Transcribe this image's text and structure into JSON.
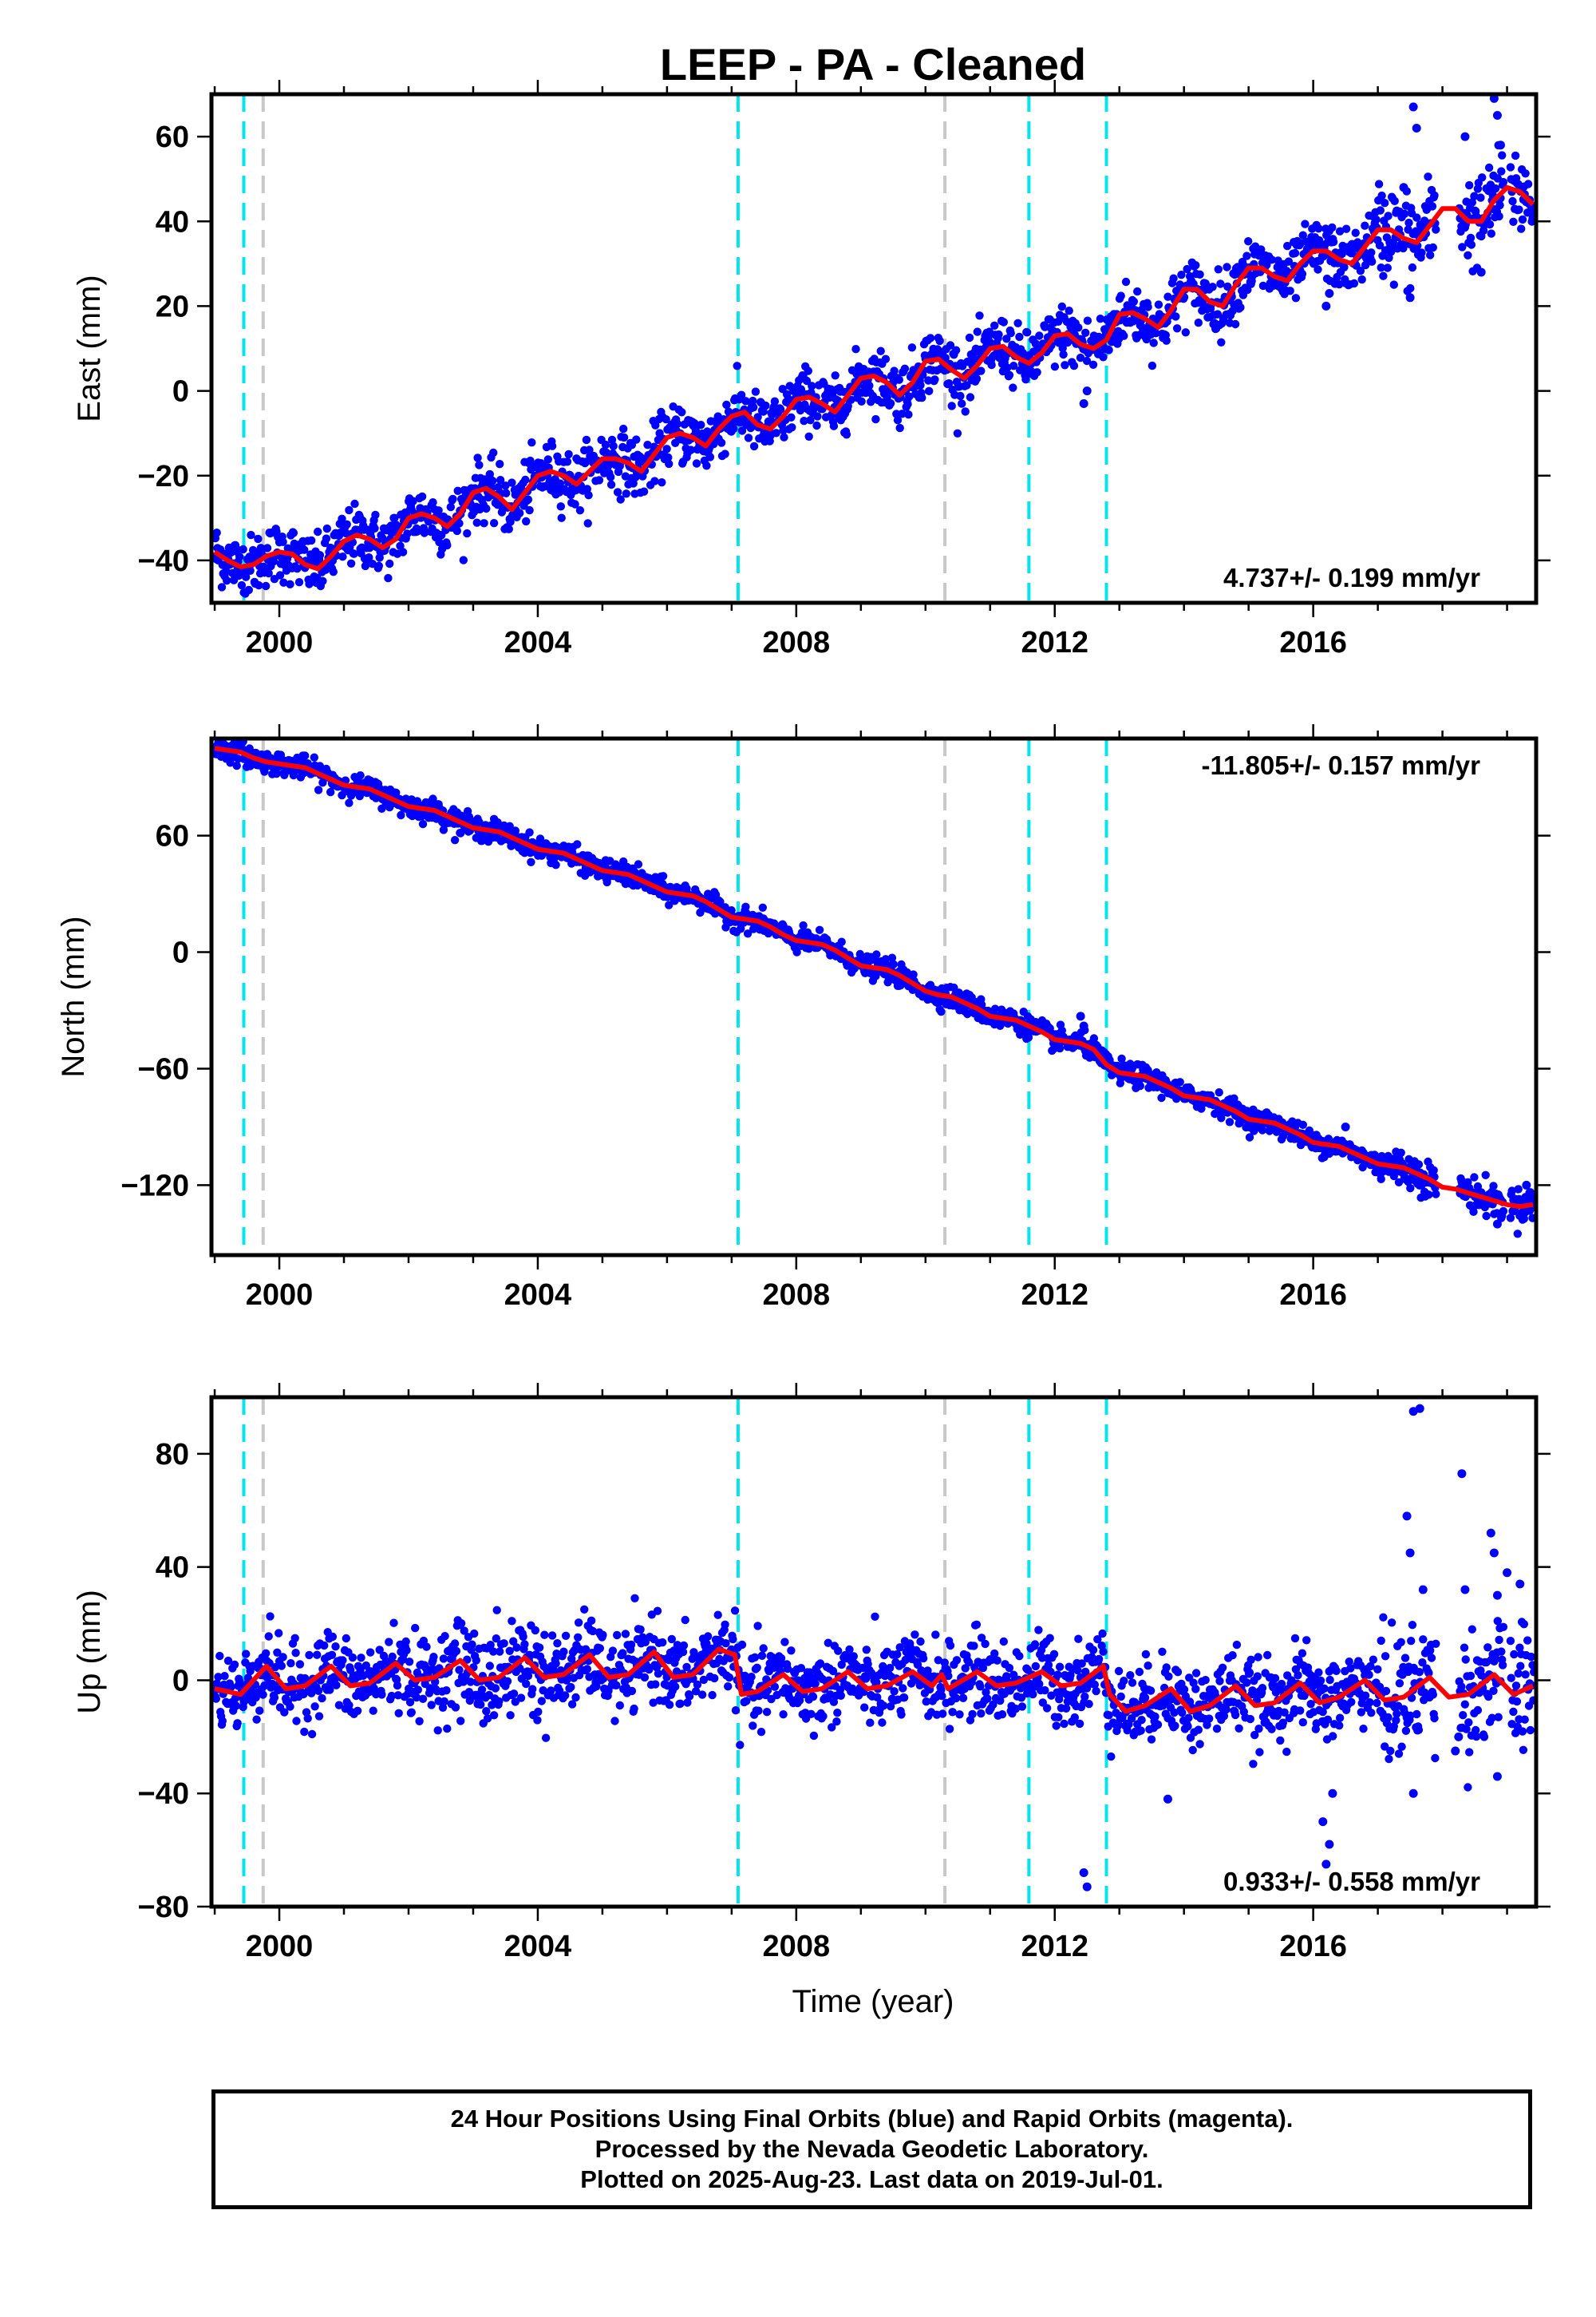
{
  "title": "LEEP  - PA - Cleaned",
  "xlabel": "Time (year)",
  "colors": {
    "final_orbits": "#0000ff",
    "model": "#ff0000",
    "equipment_change": "#00e5ee",
    "other_offset": "#c8c8c8",
    "frame": "#000000"
  },
  "footer": {
    "line1": "24 Hour Positions Using Final Orbits (blue) and Rapid Orbits (magenta).",
    "line2": "Processed by the Nevada Geodetic Laboratory.",
    "line3": "Plotted on 2025-Aug-23. Last data on 2019-Jul-01."
  },
  "chart_data": [
    {
      "type": "scatter",
      "component": "East",
      "ylabel": "East (mm)",
      "xlim": [
        1998.95,
        2019.45
      ],
      "ylim": [
        -50,
        70
      ],
      "xticks": [
        2000,
        2004,
        2008,
        2012,
        2016
      ],
      "yticks": [
        -40,
        -20,
        0,
        20,
        40,
        60
      ],
      "rate_text": "4.737+/- 0.199 mm/yr",
      "rate_position": "bottom-right",
      "cyan_offsets": [
        1999.45,
        2007.1,
        2011.6,
        2012.8
      ],
      "gray_offsets": [
        1999.75,
        2010.3
      ],
      "model": {
        "x": [
          1999.0,
          1999.2,
          1999.4,
          1999.6,
          1999.8,
          2000.0,
          2000.2,
          2000.4,
          2000.6,
          2000.8,
          2001.0,
          2001.2,
          2001.4,
          2001.6,
          2001.8,
          2002.0,
          2002.2,
          2002.4,
          2002.6,
          2002.8,
          2003.0,
          2003.2,
          2003.4,
          2003.6,
          2003.8,
          2004.0,
          2004.2,
          2004.4,
          2004.6,
          2004.8,
          2005.0,
          2005.2,
          2005.4,
          2005.6,
          2005.8,
          2006.0,
          2006.2,
          2006.4,
          2006.6,
          2006.8,
          2007.0,
          2007.2,
          2007.4,
          2007.6,
          2007.8,
          2008.0,
          2008.2,
          2008.4,
          2008.6,
          2008.8,
          2009.0,
          2009.2,
          2009.4,
          2009.6,
          2009.8,
          2010.0,
          2010.2,
          2010.4,
          2010.6,
          2010.8,
          2011.0,
          2011.2,
          2011.4,
          2011.6,
          2011.8,
          2012.0,
          2012.2,
          2012.4,
          2012.6,
          2012.8,
          2013.0,
          2013.2,
          2013.4,
          2013.6,
          2013.8,
          2014.0,
          2014.2,
          2014.4,
          2014.6,
          2014.8,
          2015.0,
          2015.2,
          2015.4,
          2015.6,
          2015.8,
          2016.0,
          2016.2,
          2016.4,
          2016.6,
          2016.8,
          2017.0,
          2017.2,
          2017.4,
          2017.6,
          2017.8,
          2018.0,
          2018.2,
          2018.4,
          2018.6,
          2018.8,
          2019.0,
          2019.2,
          2019.4
        ],
        "y": [
          -38,
          -40,
          -41.5,
          -41,
          -39,
          -38,
          -38.5,
          -41,
          -42,
          -39,
          -35.5,
          -34,
          -35,
          -37,
          -35,
          -30,
          -29,
          -30,
          -32,
          -29,
          -24,
          -23,
          -25,
          -28,
          -24,
          -20,
          -19,
          -20,
          -22,
          -19,
          -16,
          -16,
          -17,
          -19,
          -15,
          -11,
          -10,
          -11,
          -13,
          -9,
          -6,
          -5,
          -8,
          -9,
          -6,
          -2,
          -1.5,
          -3,
          -5,
          -1,
          3,
          3.5,
          2,
          -1,
          2,
          7,
          7.5,
          5,
          3,
          6,
          10,
          10.5,
          8,
          6.5,
          9,
          13,
          13.5,
          11,
          10,
          12,
          18,
          18.5,
          17,
          15,
          19,
          24,
          24,
          21,
          20,
          25,
          29,
          29,
          27,
          26,
          30,
          33,
          33,
          31,
          30,
          34,
          38,
          38,
          36,
          35,
          39,
          43,
          43,
          40,
          40,
          45,
          48,
          47,
          44
        ]
      },
      "scatter_spread": 3.5,
      "outliers": {
        "x": [
          2017.55,
          2017.6,
          2017.4,
          2018.35,
          2018.8,
          2018.85,
          2018.9,
          2018.6,
          2012.45,
          2012.5,
          2016.2,
          2016.25,
          2017.5
        ],
        "y": [
          67,
          62,
          48,
          60,
          69,
          65,
          58,
          28,
          -3,
          0,
          20,
          23,
          22
        ]
      }
    },
    {
      "type": "scatter",
      "component": "North",
      "ylabel": "North (mm)",
      "xlim": [
        1998.95,
        2019.45
      ],
      "ylim": [
        -156,
        110
      ],
      "xticks": [
        2000,
        2004,
        2008,
        2012,
        2016
      ],
      "yticks": [
        -120,
        -60,
        0,
        60
      ],
      "rate_text": "-11.805+/- 0.157 mm/yr",
      "rate_position": "top-right",
      "cyan_offsets": [
        1999.45,
        2007.1,
        2011.6,
        2012.8
      ],
      "gray_offsets": [
        1999.75,
        2010.3
      ],
      "model": {
        "x": [
          1999.0,
          1999.2,
          1999.4,
          1999.6,
          1999.8,
          2000.0,
          2000.2,
          2000.4,
          2000.6,
          2000.8,
          2001.0,
          2001.2,
          2001.4,
          2001.6,
          2001.8,
          2002.0,
          2002.2,
          2002.4,
          2002.6,
          2002.8,
          2003.0,
          2003.2,
          2003.4,
          2003.6,
          2003.8,
          2004.0,
          2004.2,
          2004.4,
          2004.6,
          2004.8,
          2005.0,
          2005.2,
          2005.4,
          2005.6,
          2005.8,
          2006.0,
          2006.2,
          2006.4,
          2006.6,
          2006.8,
          2007.0,
          2007.2,
          2007.4,
          2007.6,
          2007.8,
          2008.0,
          2008.2,
          2008.4,
          2008.6,
          2008.8,
          2009.0,
          2009.2,
          2009.4,
          2009.6,
          2009.8,
          2010.0,
          2010.2,
          2010.4,
          2010.6,
          2010.8,
          2011.0,
          2011.2,
          2011.4,
          2011.6,
          2011.8,
          2012.0,
          2012.2,
          2012.4,
          2012.6,
          2012.8,
          2013.0,
          2013.2,
          2013.4,
          2013.6,
          2013.8,
          2014.0,
          2014.2,
          2014.4,
          2014.6,
          2014.8,
          2015.0,
          2015.2,
          2015.4,
          2015.6,
          2015.8,
          2016.0,
          2016.2,
          2016.4,
          2016.6,
          2016.8,
          2017.0,
          2017.2,
          2017.4,
          2017.6,
          2017.8,
          2018.0,
          2018.2,
          2018.4,
          2018.6,
          2018.8,
          2019.0,
          2019.2,
          2019.4
        ],
        "y": [
          105,
          104,
          103,
          100,
          98,
          97,
          96,
          95,
          92,
          89,
          86,
          85,
          84,
          81,
          78,
          75,
          74,
          73,
          70,
          67,
          64,
          63,
          62,
          59,
          56,
          53,
          52,
          51,
          48,
          45,
          42,
          41,
          40,
          37,
          34,
          31,
          30,
          29,
          26,
          22,
          18,
          17,
          16,
          13,
          9,
          6,
          5,
          4,
          1,
          -3,
          -7,
          -8,
          -9,
          -12,
          -16,
          -20,
          -22,
          -23,
          -26,
          -29,
          -33,
          -34,
          -35,
          -38,
          -41,
          -45,
          -46,
          -47,
          -50,
          -58,
          -62,
          -63,
          -64,
          -67,
          -70,
          -74,
          -75,
          -76,
          -79,
          -82,
          -86,
          -87,
          -88,
          -91,
          -94,
          -98,
          -99,
          -100,
          -103,
          -106,
          -109,
          -110,
          -111,
          -114,
          -117,
          -121,
          -122,
          -124,
          -126,
          -128,
          -130,
          -131,
          -130
        ]
      },
      "scatter_spread": 2.8,
      "outliers": {
        "x": [
          2012.4,
          2012.45,
          2018.85,
          2018.9,
          2016.5,
          2018.3,
          2019.3,
          2019.35
        ],
        "y": [
          -33,
          -38,
          -140,
          -135,
          -90,
          -118,
          -120,
          -124
        ]
      }
    },
    {
      "type": "scatter",
      "component": "Up",
      "ylabel": "Up (mm)",
      "xlim": [
        1998.95,
        2019.45
      ],
      "ylim": [
        -80,
        100
      ],
      "xticks": [
        2000,
        2004,
        2008,
        2012,
        2016
      ],
      "yticks": [
        -80,
        -40,
        0,
        40,
        80
      ],
      "rate_text": "0.933+/- 0.558 mm/yr",
      "rate_position": "bottom-right",
      "cyan_offsets": [
        1999.45,
        2007.1,
        2011.6,
        2012.8
      ],
      "gray_offsets": [
        1999.75,
        2010.3
      ],
      "model": {
        "x": [
          1999.0,
          1999.4,
          1999.8,
          2000.1,
          2000.4,
          2000.8,
          2001.1,
          2001.4,
          2001.8,
          2002.1,
          2002.4,
          2002.8,
          2003.1,
          2003.4,
          2003.8,
          2004.1,
          2004.4,
          2004.8,
          2005.1,
          2005.4,
          2005.8,
          2006.1,
          2006.4,
          2006.8,
          2007.05,
          2007.15,
          2007.4,
          2007.8,
          2008.1,
          2008.4,
          2008.8,
          2009.1,
          2009.4,
          2009.8,
          2010.1,
          2010.25,
          2010.35,
          2010.8,
          2011.1,
          2011.4,
          2011.8,
          2012.1,
          2012.4,
          2012.75,
          2012.85,
          2013.1,
          2013.4,
          2013.8,
          2014.1,
          2014.4,
          2014.8,
          2015.1,
          2015.4,
          2015.8,
          2016.1,
          2016.4,
          2016.8,
          2017.1,
          2017.4,
          2017.8,
          2018.1,
          2018.4,
          2018.8,
          2019.1,
          2019.4
        ],
        "y": [
          -3,
          -5,
          5,
          -3,
          -2,
          5,
          -2,
          -1,
          6,
          0,
          1,
          7,
          0,
          1,
          8,
          1,
          2,
          9,
          1,
          2,
          10,
          1,
          2,
          11,
          9,
          -5,
          -4,
          2,
          -4,
          -3,
          3,
          -3,
          -2,
          3,
          -2,
          2,
          -3,
          3,
          -2,
          -1,
          3,
          -2,
          -1,
          5,
          -5,
          -11,
          -9,
          -3,
          -11,
          -9,
          -2,
          -9,
          -8,
          -1,
          -8,
          -6,
          0,
          -7,
          -6,
          1,
          -6,
          -5,
          2,
          -5,
          -2
        ]
      },
      "scatter_spread": 7,
      "outliers": {
        "x": [
          2017.45,
          2017.5,
          2017.55,
          2017.65,
          2017.7,
          2018.2,
          2018.3,
          2018.35,
          2018.75,
          2018.8,
          2018.85,
          2016.2,
          2016.25,
          2016.3,
          2016.15,
          2012.45,
          2012.5,
          2013.75,
          2017.55,
          2018.25,
          2018.85,
          2019.0,
          2019.2
        ],
        "y": [
          58,
          45,
          95,
          96,
          32,
          -25,
          73,
          32,
          52,
          45,
          -34,
          -65,
          -58,
          -40,
          -50,
          -68,
          -73,
          -42,
          -40,
          -20,
          30,
          38,
          34
        ]
      }
    }
  ]
}
